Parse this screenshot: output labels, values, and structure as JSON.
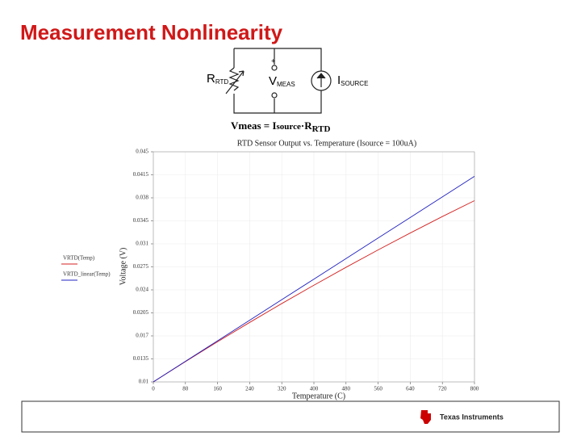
{
  "header": {
    "title": "Measurement Nonlinearity"
  },
  "circuit": {
    "r": "R",
    "r_sub": "RTD",
    "v": "V",
    "v_sub": "MEAS",
    "i": "I",
    "i_sub": "SOURCE",
    "plus": "+"
  },
  "formula": {
    "lhs": "Vmeas",
    "eq": "=",
    "i": "I",
    "i_sub": "source",
    "dot": "·R",
    "r_sub": "RTD"
  },
  "footer": {
    "logo": "Texas Instruments"
  },
  "chart_data": {
    "type": "line",
    "title": "RTD Sensor Output vs. Temperature (Isource = 100uA)",
    "x_label": "Temperature (C)",
    "y_label": "Voltage (V)",
    "x": [
      0,
      80,
      160,
      240,
      320,
      400,
      480,
      560,
      640,
      720,
      800
    ],
    "series": [
      {
        "name": "VRTD(Temp)",
        "color": "#d42020",
        "values": [
          0.01,
          0.01309,
          0.01611,
          0.01905,
          0.02192,
          0.02471,
          0.02743,
          0.03008,
          0.03265,
          0.03515,
          0.03757
        ]
      },
      {
        "name": "VRTD_linear(Temp)",
        "color": "#2020c0",
        "values": [
          0.01,
          0.01313,
          0.01625,
          0.01938,
          0.02251,
          0.02563,
          0.02876,
          0.03189,
          0.03501,
          0.03814,
          0.04127
        ]
      }
    ],
    "xlim": [
      0,
      800
    ],
    "xticks": [
      0,
      80,
      160,
      240,
      320,
      400,
      480,
      560,
      640,
      720,
      800
    ],
    "ylim": [
      0.01,
      0.045
    ],
    "yticks": [
      0.01,
      0.0135,
      0.017,
      0.0205,
      0.024,
      0.0275,
      0.031,
      0.0345,
      0.038,
      0.0415,
      0.045
    ],
    "grid": true
  }
}
